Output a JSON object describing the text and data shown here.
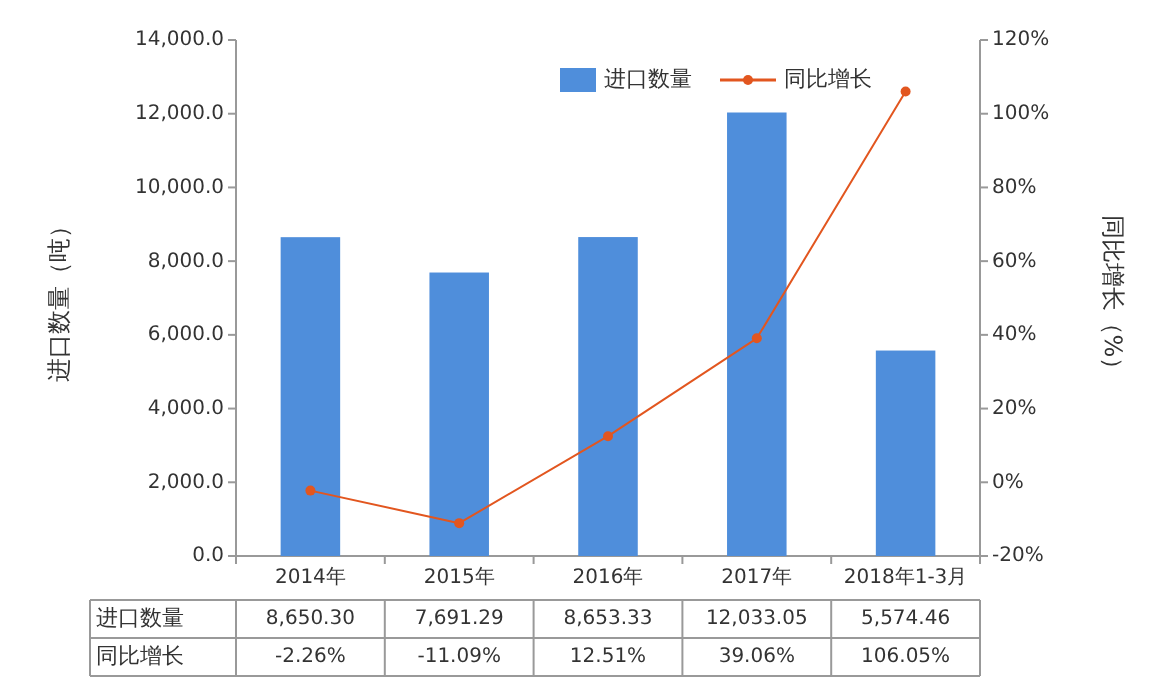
{
  "chart_data": {
    "type": "bar",
    "categories": [
      "2014年",
      "2015年",
      "2016年",
      "2017年",
      "2018年1-3月"
    ],
    "ylabel": "进口数量（吨）",
    "y2label": "同比增长（%）",
    "ylim": [
      0,
      14000
    ],
    "yticks": [
      {
        "value": 0,
        "label": "0.0"
      },
      {
        "value": 2000,
        "label": "2,000.0"
      },
      {
        "value": 4000,
        "label": "4,000.0"
      },
      {
        "value": 6000,
        "label": "6,000.0"
      },
      {
        "value": 8000,
        "label": "8,000.0"
      },
      {
        "value": 10000,
        "label": "10,000.0"
      },
      {
        "value": 12000,
        "label": "12,000.0"
      },
      {
        "value": 14000,
        "label": "14,000.0"
      }
    ],
    "y2lim": [
      -20,
      120
    ],
    "y2ticks": [
      {
        "value": -20,
        "label": "-20%"
      },
      {
        "value": 0,
        "label": "0%"
      },
      {
        "value": 20,
        "label": "20%"
      },
      {
        "value": 40,
        "label": "40%"
      },
      {
        "value": 60,
        "label": "60%"
      },
      {
        "value": 80,
        "label": "80%"
      },
      {
        "value": 100,
        "label": "100%"
      },
      {
        "value": 120,
        "label": "120%"
      }
    ],
    "legend": "top right",
    "series": [
      {
        "name": "进口数量",
        "color": "#4f8edb",
        "values": [
          8650.3,
          7691.29,
          8653.33,
          12033.05,
          5574.46
        ],
        "value_labels": [
          "8,650.30",
          "7,691.29",
          "8,653.33",
          "12,033.05",
          "5,574.46"
        ]
      },
      {
        "name": "同比增长",
        "type": "line",
        "axis": "y2",
        "color": "#e2561f",
        "marker": "circle",
        "values": [
          -2.26,
          -11.09,
          12.51,
          39.06,
          106.05
        ],
        "value_labels": [
          "-2.26%",
          "-11.09%",
          "12.51%",
          "39.06%",
          "106.05%"
        ]
      }
    ]
  }
}
